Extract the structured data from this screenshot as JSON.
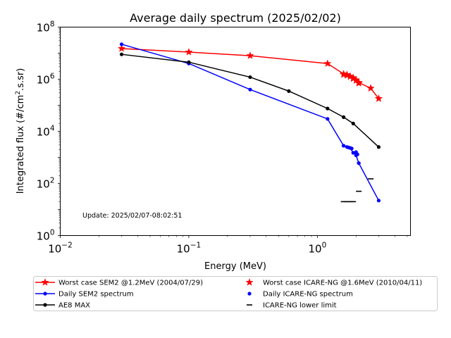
{
  "chart_data": {
    "type": "line",
    "title": "Average daily spectrum (2025/02/02)",
    "xlabel": "Energy (MeV)",
    "ylabel_main": "Integrated flux (#/cm",
    "ylabel_sup": "2",
    "ylabel_tail": ".s.sr)",
    "x_scale": "log",
    "y_scale": "log",
    "xlim": [
      0.01,
      5.3
    ],
    "ylim": [
      1,
      100000000
    ],
    "grid": false,
    "annotation": "Update: 2025/02/07-08:02:51",
    "x_ticks": [
      {
        "value": 0.01,
        "base": "10",
        "exp": "−2"
      },
      {
        "value": 0.1,
        "base": "10",
        "exp": "−1"
      },
      {
        "value": 1,
        "base": "10",
        "exp": "0"
      }
    ],
    "y_ticks": [
      {
        "value": 1,
        "base": "10",
        "exp": "0"
      },
      {
        "value": 100,
        "base": "10",
        "exp": "2"
      },
      {
        "value": 10000,
        "base": "10",
        "exp": "4"
      },
      {
        "value": 1000000,
        "base": "10",
        "exp": "6"
      },
      {
        "value": 100000000,
        "base": "10",
        "exp": "8"
      }
    ],
    "series": [
      {
        "name": "Worst case SEM2 @1.2MeV (2004/07/29)",
        "color": "#ff0000",
        "marker": "star",
        "line": true,
        "x": [
          0.03,
          0.1,
          0.3,
          1.2,
          1.6,
          1.7,
          1.8,
          1.9,
          2.0,
          2.1,
          2.6,
          3.0
        ],
        "y": [
          15000000,
          11000000,
          8000000,
          4000000,
          1600000,
          1500000,
          1300000,
          1150000,
          950000,
          750000,
          450000,
          180000
        ]
      },
      {
        "name": "Daily SEM2 spectrum",
        "color": "#0000ff",
        "marker": "dot",
        "line": true,
        "x": [
          0.03,
          0.1,
          0.3,
          1.2,
          1.6,
          1.7,
          1.8,
          1.9,
          2.0,
          2.1,
          3.0
        ],
        "y": [
          22000000,
          4000000,
          400000,
          30000,
          2800,
          2500,
          2300,
          1500,
          1200,
          600,
          22
        ]
      },
      {
        "name": "AE8 MAX",
        "color": "#000000",
        "marker": "dot",
        "line": true,
        "x": [
          0.03,
          0.1,
          0.3,
          0.6,
          1.2,
          1.6,
          1.9,
          3.0
        ],
        "y": [
          9000000,
          4500000,
          1200000,
          350000,
          75000,
          35000,
          20000,
          2500
        ]
      },
      {
        "name": "Worst case ICARE-NG @1.6MeV (2010/04/11)",
        "color": "#ff0000",
        "marker": "star",
        "line": false,
        "x": [
          1.6,
          1.7,
          1.8,
          1.9,
          2.0,
          2.1,
          2.6,
          3.0
        ],
        "y": [
          1500000,
          1400000,
          1250000,
          1050000,
          900000,
          700000,
          450000,
          180000
        ]
      },
      {
        "name": "Daily ICARE-NG spectrum",
        "color": "#0000ff",
        "marker": "dot",
        "line": false,
        "x": [
          1.6,
          1.75,
          1.85,
          2.0,
          2.05,
          2.1
        ],
        "y": [
          2800,
          2400,
          2200,
          1600,
          1300,
          600
        ]
      },
      {
        "name": "ICARE-NG lower limit",
        "color": "#000000",
        "marker": "hline",
        "line": false,
        "x": [
          1.6,
          1.7,
          1.8,
          1.9,
          2.1,
          2.6
        ],
        "y": [
          20,
          20,
          20,
          20,
          50,
          150
        ]
      }
    ],
    "legend": {
      "placement": "below",
      "columns": 2,
      "entries": [
        {
          "label": "Worst case SEM2 @1.2MeV (2004/07/29)",
          "color": "#ff0000",
          "marker": "star",
          "line": true
        },
        {
          "label": "Worst case ICARE-NG @1.6MeV (2010/04/11)",
          "color": "#ff0000",
          "marker": "star",
          "line": false
        },
        {
          "label": "Daily SEM2 spectrum",
          "color": "#0000ff",
          "marker": "dot",
          "line": true
        },
        {
          "label": "Daily ICARE-NG spectrum",
          "color": "#0000ff",
          "marker": "dot",
          "line": false
        },
        {
          "label": "AE8 MAX",
          "color": "#000000",
          "marker": "dot",
          "line": true
        },
        {
          "label": "ICARE-NG lower limit",
          "color": "#000000",
          "marker": "hline",
          "line": false
        }
      ]
    }
  }
}
